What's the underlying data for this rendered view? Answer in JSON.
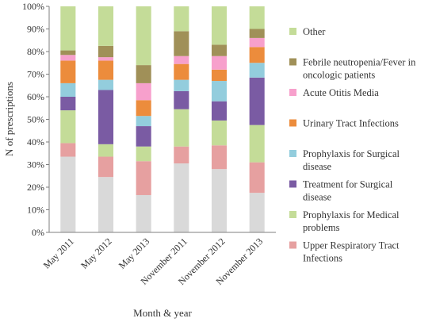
{
  "chart_data": {
    "type": "bar",
    "stacked": true,
    "percent_stacked": true,
    "xlabel": "Month & year",
    "ylabel": "N of prescriptions",
    "ylim": [
      0,
      100
    ],
    "y_ticks": [
      "0%",
      "10%",
      "20%",
      "30%",
      "40%",
      "50%",
      "60%",
      "70%",
      "80%",
      "90%",
      "100%"
    ],
    "categories": [
      "May 2011",
      "May 2012",
      "May 2013",
      "November 2011",
      "November 2012",
      "November 2013"
    ],
    "series": [
      {
        "name": "",
        "color": "#d9d9d9",
        "values": [
          33.5,
          24.5,
          16.5,
          30.5,
          28,
          17.5
        ]
      },
      {
        "name": "Upper Respiratory Tract Infections",
        "color": "#e6a0a0",
        "values": [
          6,
          9,
          15,
          7.5,
          10.5,
          13.5
        ]
      },
      {
        "name": "Prophylaxis for Medical problems",
        "color": "#c4dc98",
        "values": [
          14.5,
          5.5,
          6.5,
          16.5,
          11,
          16.5
        ]
      },
      {
        "name": "Treatment for Surgical disease",
        "color": "#7a5ba3",
        "values": [
          6,
          24,
          9,
          8,
          8.5,
          21
        ]
      },
      {
        "name": "Prophylaxis for Surgical disease",
        "color": "#93cddd",
        "values": [
          6,
          4.5,
          4.5,
          5,
          9,
          6.5
        ]
      },
      {
        "name": "Urinary Tract Infections",
        "color": "#ec8c3c",
        "values": [
          10,
          8.5,
          7,
          7,
          5,
          7
        ]
      },
      {
        "name": "Acute Otitis Media",
        "color": "#f7a0cc",
        "values": [
          2.5,
          1.5,
          7.5,
          3.5,
          6,
          4
        ]
      },
      {
        "name": "Febrile neutropenia/Fever in oncologic patients",
        "color": "#a09058",
        "values": [
          2,
          5,
          8,
          11,
          5,
          4
        ]
      },
      {
        "name": "Other",
        "color": "#c4dc98",
        "values": [
          19.5,
          17.5,
          26,
          11,
          17,
          10
        ]
      }
    ],
    "legend": {
      "placement": "right",
      "items": [
        {
          "lines": [
            "Other"
          ],
          "color": "#c4dc98"
        },
        {
          "lines": [
            "Febrile neutropenia/Fever in",
            "oncologic patients"
          ],
          "color": "#a09058"
        },
        {
          "lines": [
            "Acute Otitis Media"
          ],
          "color": "#f7a0cc"
        },
        {
          "lines": [
            "Urinary Tract Infections"
          ],
          "color": "#ec8c3c"
        },
        {
          "lines": [
            "Prophylaxis for Surgical",
            "disease"
          ],
          "color": "#93cddd"
        },
        {
          "lines": [
            "Treatment for Surgical",
            "disease"
          ],
          "color": "#7a5ba3"
        },
        {
          "lines": [
            "Prophylaxis for Medical",
            "problems"
          ],
          "color": "#c4dc98"
        },
        {
          "lines": [
            "Upper Respiratory Tract",
            "Infections"
          ],
          "color": "#e6a0a0"
        }
      ]
    },
    "grid": false
  }
}
